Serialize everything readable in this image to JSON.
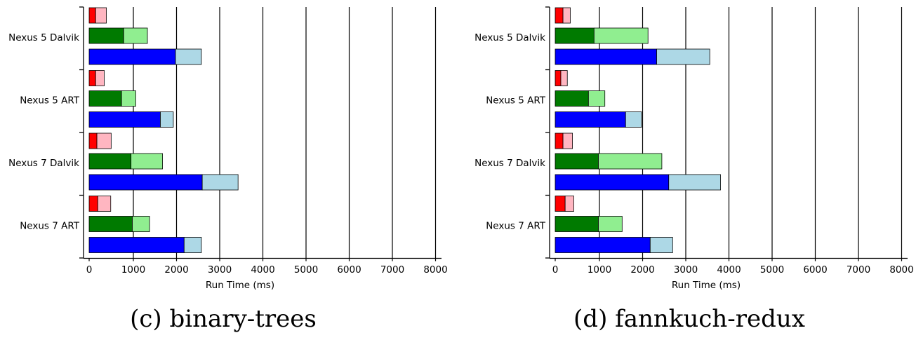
{
  "chart_data": [
    {
      "type": "bar",
      "orientation": "horizontal",
      "stacked": true,
      "title": "(c) binary-trees",
      "xlabel": "Run Time (ms)",
      "ylabel": "",
      "xlim": [
        0,
        8000
      ],
      "xticks": [
        0,
        1000,
        2000,
        3000,
        4000,
        5000,
        6000,
        7000,
        8000
      ],
      "xtick_labels": [
        "0",
        "1000",
        "2000",
        "3000",
        "4000",
        "5000",
        "6000",
        "7000",
        "8000"
      ],
      "grid": "vertical",
      "categories": [
        "Nexus 5 Dalvik",
        "Nexus 5 ART",
        "Nexus 7 Dalvik",
        "Nexus 7 ART"
      ],
      "groups": [
        {
          "category": "Nexus 5 Dalvik",
          "bars": [
            {
              "segments": [
                {
                  "value": 150,
                  "color": "#ff0000"
                },
                {
                  "value": 250,
                  "color": "#ffb6c1"
                }
              ]
            },
            {
              "segments": [
                {
                  "value": 800,
                  "color": "#007a00"
                },
                {
                  "value": 550,
                  "color": "#90ee90"
                }
              ]
            },
            {
              "segments": [
                {
                  "value": 2000,
                  "color": "#0000ff"
                },
                {
                  "value": 600,
                  "color": "#add8e6"
                }
              ]
            }
          ]
        },
        {
          "category": "Nexus 5 ART",
          "bars": [
            {
              "segments": [
                {
                  "value": 150,
                  "color": "#ff0000"
                },
                {
                  "value": 200,
                  "color": "#ffb6c1"
                }
              ]
            },
            {
              "segments": [
                {
                  "value": 750,
                  "color": "#007a00"
                },
                {
                  "value": 330,
                  "color": "#90ee90"
                }
              ]
            },
            {
              "segments": [
                {
                  "value": 1650,
                  "color": "#0000ff"
                },
                {
                  "value": 300,
                  "color": "#add8e6"
                }
              ]
            }
          ]
        },
        {
          "category": "Nexus 7 Dalvik",
          "bars": [
            {
              "segments": [
                {
                  "value": 180,
                  "color": "#ff0000"
                },
                {
                  "value": 330,
                  "color": "#ffb6c1"
                }
              ]
            },
            {
              "segments": [
                {
                  "value": 970,
                  "color": "#007a00"
                },
                {
                  "value": 730,
                  "color": "#90ee90"
                }
              ]
            },
            {
              "segments": [
                {
                  "value": 2620,
                  "color": "#0000ff"
                },
                {
                  "value": 830,
                  "color": "#add8e6"
                }
              ]
            }
          ]
        },
        {
          "category": "Nexus 7 ART",
          "bars": [
            {
              "segments": [
                {
                  "value": 200,
                  "color": "#ff0000"
                },
                {
                  "value": 300,
                  "color": "#ffb6c1"
                }
              ]
            },
            {
              "segments": [
                {
                  "value": 1000,
                  "color": "#007a00"
                },
                {
                  "value": 400,
                  "color": "#90ee90"
                }
              ]
            },
            {
              "segments": [
                {
                  "value": 2200,
                  "color": "#0000ff"
                },
                {
                  "value": 400,
                  "color": "#add8e6"
                }
              ]
            }
          ]
        }
      ]
    },
    {
      "type": "bar",
      "orientation": "horizontal",
      "stacked": true,
      "title": "(d) fannkuch-redux",
      "xlabel": "Run Time (ms)",
      "ylabel": "",
      "xlim": [
        0,
        8000
      ],
      "xticks": [
        0,
        1000,
        2000,
        3000,
        4000,
        5000,
        6000,
        7000,
        8000
      ],
      "xtick_labels": [
        "0",
        "1000",
        "2000",
        "3000",
        "4000",
        "5000",
        "6000",
        "7000",
        "8000"
      ],
      "grid": "vertical",
      "categories": [
        "Nexus 5 Dalvik",
        "Nexus 5 ART",
        "Nexus 7 Dalvik",
        "Nexus 7 ART"
      ],
      "groups": [
        {
          "category": "Nexus 5 Dalvik",
          "bars": [
            {
              "segments": [
                {
                  "value": 180,
                  "color": "#ff0000"
                },
                {
                  "value": 170,
                  "color": "#ffb6c1"
                }
              ]
            },
            {
              "segments": [
                {
                  "value": 900,
                  "color": "#007a00"
                },
                {
                  "value": 1250,
                  "color": "#90ee90"
                }
              ]
            },
            {
              "segments": [
                {
                  "value": 2350,
                  "color": "#0000ff"
                },
                {
                  "value": 1230,
                  "color": "#add8e6"
                }
              ]
            }
          ]
        },
        {
          "category": "Nexus 5 ART",
          "bars": [
            {
              "segments": [
                {
                  "value": 130,
                  "color": "#ff0000"
                },
                {
                  "value": 150,
                  "color": "#ffb6c1"
                }
              ]
            },
            {
              "segments": [
                {
                  "value": 770,
                  "color": "#007a00"
                },
                {
                  "value": 380,
                  "color": "#90ee90"
                }
              ]
            },
            {
              "segments": [
                {
                  "value": 1630,
                  "color": "#0000ff"
                },
                {
                  "value": 370,
                  "color": "#add8e6"
                }
              ]
            }
          ]
        },
        {
          "category": "Nexus 7 Dalvik",
          "bars": [
            {
              "segments": [
                {
                  "value": 180,
                  "color": "#ff0000"
                },
                {
                  "value": 220,
                  "color": "#ffb6c1"
                }
              ]
            },
            {
              "segments": [
                {
                  "value": 1000,
                  "color": "#007a00"
                },
                {
                  "value": 1470,
                  "color": "#90ee90"
                }
              ]
            },
            {
              "segments": [
                {
                  "value": 2630,
                  "color": "#0000ff"
                },
                {
                  "value": 1200,
                  "color": "#add8e6"
                }
              ]
            }
          ]
        },
        {
          "category": "Nexus 7 ART",
          "bars": [
            {
              "segments": [
                {
                  "value": 230,
                  "color": "#ff0000"
                },
                {
                  "value": 200,
                  "color": "#ffb6c1"
                }
              ]
            },
            {
              "segments": [
                {
                  "value": 1000,
                  "color": "#007a00"
                },
                {
                  "value": 550,
                  "color": "#90ee90"
                }
              ]
            },
            {
              "segments": [
                {
                  "value": 2200,
                  "color": "#0000ff"
                },
                {
                  "value": 520,
                  "color": "#add8e6"
                }
              ]
            }
          ]
        }
      ]
    }
  ]
}
